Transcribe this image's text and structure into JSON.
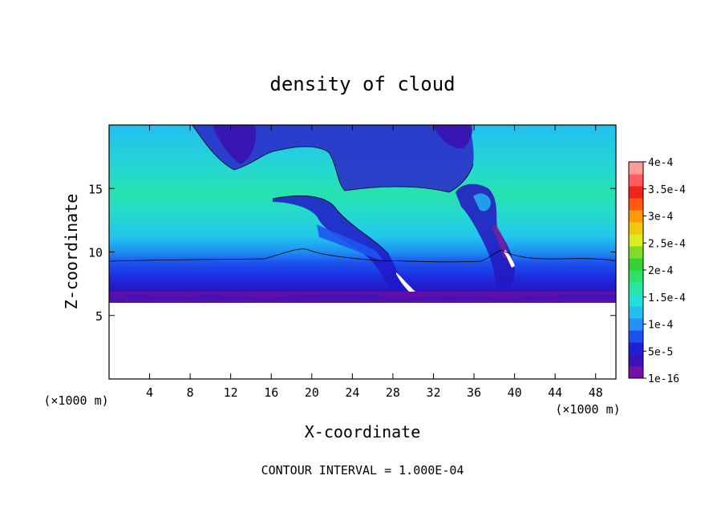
{
  "chart_data": {
    "type": "heatmap",
    "title": "density of cloud",
    "xlabel": "X-coordinate",
    "ylabel": "Z-coordinate",
    "x_unit": "(×1000 m)",
    "z_unit": "(×1000 m)",
    "xlim": [
      0,
      50
    ],
    "ylim": [
      0,
      20
    ],
    "x_ticks": [
      4,
      8,
      12,
      16,
      20,
      24,
      28,
      32,
      36,
      40,
      44,
      48
    ],
    "y_ticks": [
      5,
      10,
      15
    ],
    "colorbar": {
      "labels": [
        "1e-16",
        "5e-5",
        "1e-4",
        "1.5e-4",
        "2e-4",
        "2.5e-4",
        "3e-4",
        "3.5e-4",
        "4e-4"
      ],
      "colors": [
        "#7a0fa8",
        "#3b12b8",
        "#1f1fd8",
        "#1e50f0",
        "#2492f4",
        "#22bff0",
        "#22e0d8",
        "#27e6a6",
        "#2fe06a",
        "#34d236",
        "#7ede26",
        "#d8ee22",
        "#f2c80e",
        "#ff9a0a",
        "#ff5a10",
        "#f02418",
        "#ff5c5c",
        "#ff9a9a"
      ]
    },
    "footer": "CONTOUR INTERVAL = 1.000E-04"
  }
}
